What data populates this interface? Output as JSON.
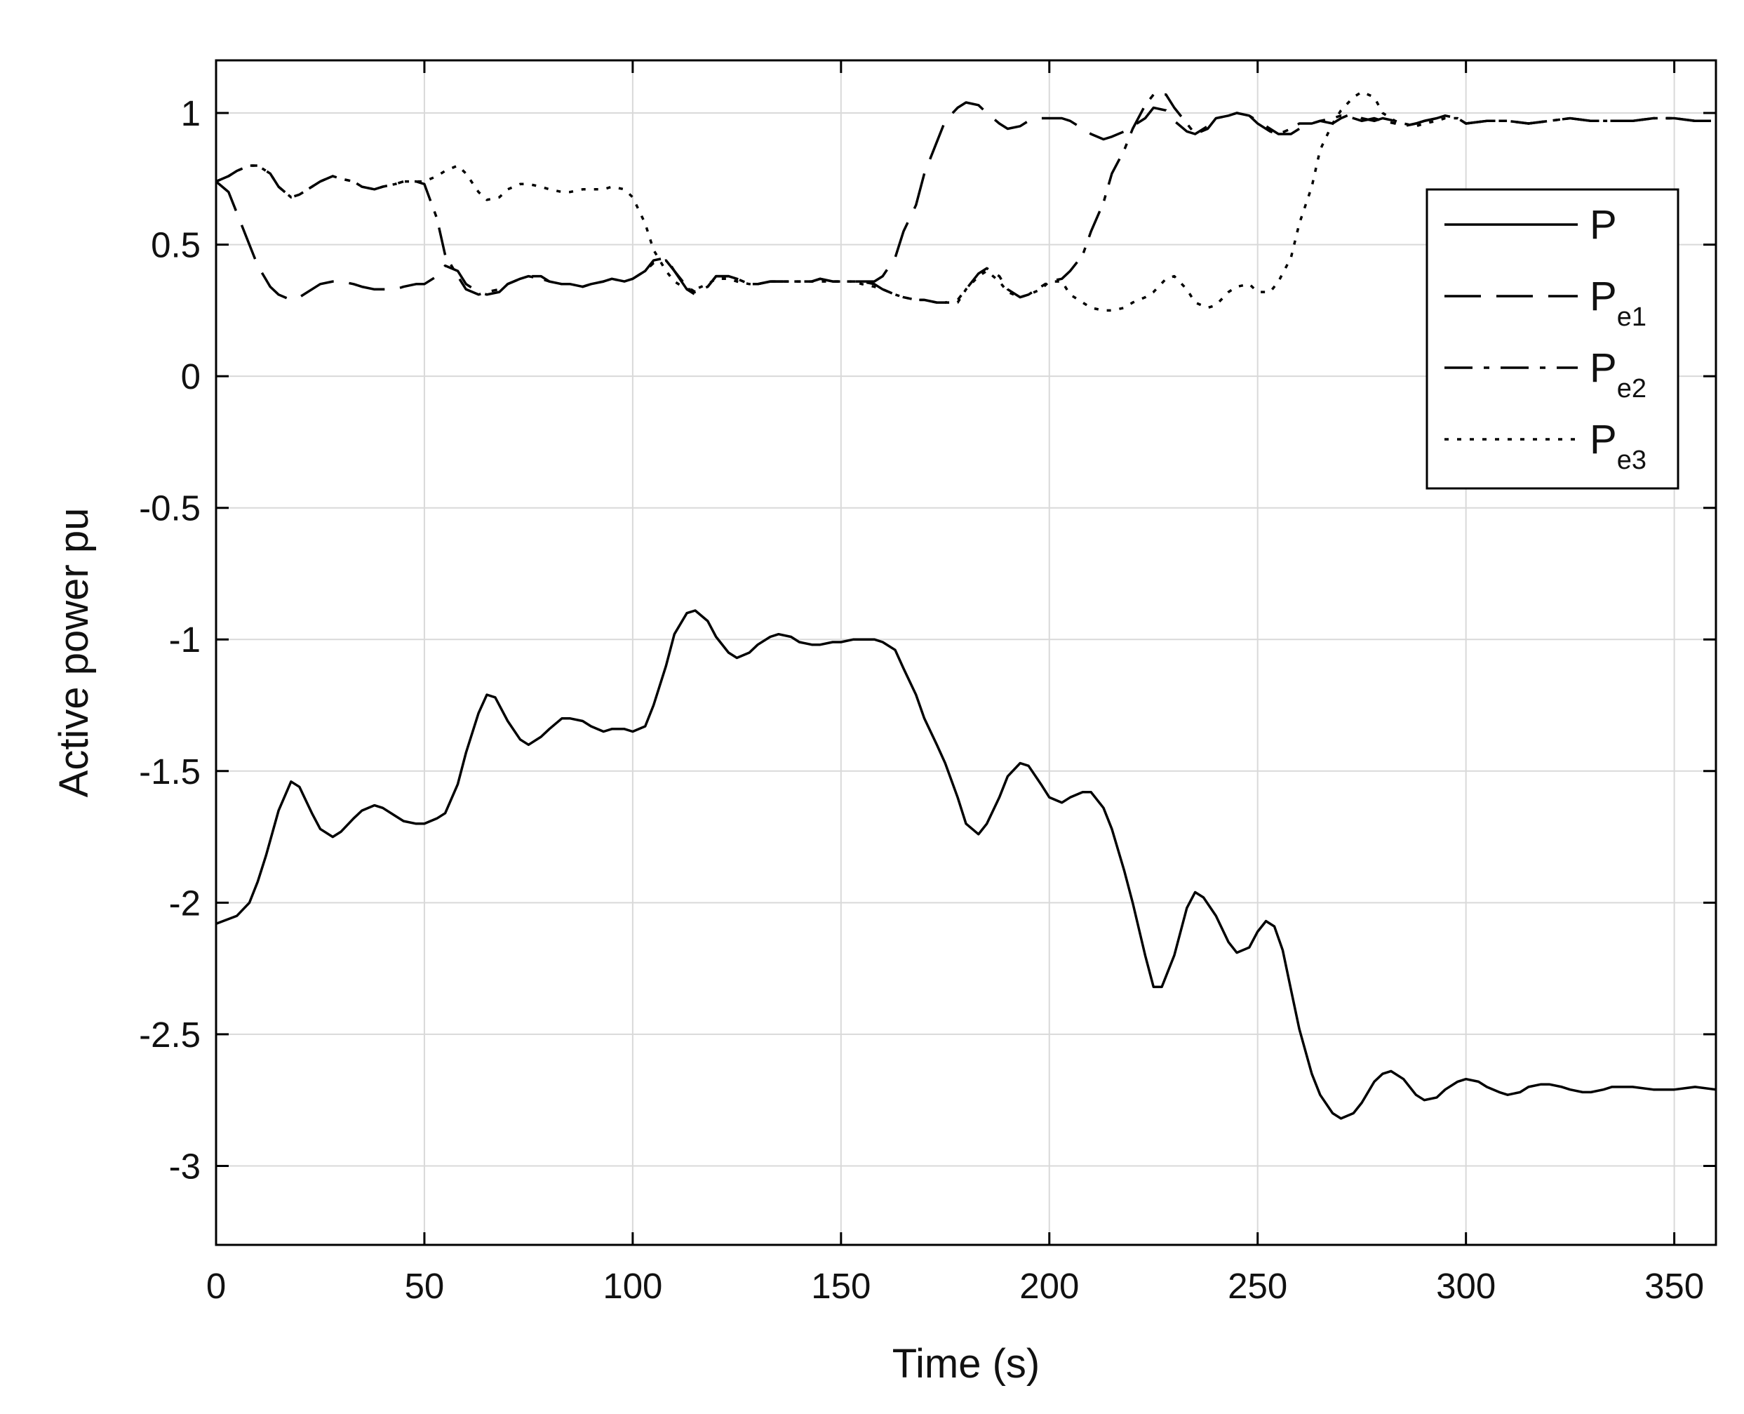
{
  "chart_data": {
    "type": "line",
    "title": "",
    "xlabel": "Time (s)",
    "ylabel": "Active power pu",
    "xlim": [
      0,
      360
    ],
    "ylim": [
      -3.3,
      1.2
    ],
    "xticks": [
      0,
      50,
      100,
      150,
      200,
      250,
      300,
      350
    ],
    "yticks": [
      1,
      0.5,
      0,
      -0.5,
      -1,
      -1.5,
      -2,
      -2.5,
      -3
    ],
    "xtick_labels": [
      "0",
      "50",
      "100",
      "150",
      "200",
      "250",
      "300",
      "350"
    ],
    "ytick_labels": [
      "1",
      "0.5",
      "0",
      "-0.5",
      "-1",
      "-1.5",
      "-2",
      "-2.5",
      "-3"
    ],
    "grid": true,
    "legend_position": "top-right",
    "colors": {
      "line": "#000000",
      "grid": "#d9d9d9",
      "axis": "#000000"
    },
    "series": [
      {
        "name": "P",
        "name_main": "P",
        "name_sub": "",
        "style": "solid",
        "x": [
          0,
          5,
          8,
          10,
          12,
          15,
          18,
          20,
          23,
          25,
          28,
          30,
          33,
          35,
          38,
          40,
          43,
          45,
          48,
          50,
          53,
          55,
          58,
          60,
          63,
          65,
          67,
          70,
          73,
          75,
          78,
          80,
          83,
          85,
          88,
          90,
          93,
          95,
          98,
          100,
          103,
          105,
          108,
          110,
          113,
          115,
          118,
          120,
          123,
          125,
          128,
          130,
          133,
          135,
          138,
          140,
          143,
          145,
          148,
          150,
          153,
          155,
          158,
          160,
          163,
          165,
          168,
          170,
          173,
          175,
          178,
          180,
          183,
          185,
          188,
          190,
          193,
          195,
          198,
          200,
          203,
          205,
          208,
          210,
          213,
          215,
          218,
          220,
          223,
          225,
          227,
          230,
          233,
          235,
          237,
          240,
          243,
          245,
          248,
          250,
          252,
          254,
          256,
          258,
          260,
          263,
          265,
          268,
          270,
          273,
          275,
          278,
          280,
          282,
          285,
          288,
          290,
          293,
          295,
          298,
          300,
          303,
          305,
          308,
          310,
          313,
          315,
          318,
          320,
          323,
          325,
          328,
          330,
          333,
          335,
          338,
          340,
          345,
          350,
          355,
          360
        ],
        "y": [
          -2.08,
          -2.05,
          -2.0,
          -1.92,
          -1.82,
          -1.65,
          -1.54,
          -1.56,
          -1.66,
          -1.72,
          -1.75,
          -1.73,
          -1.68,
          -1.65,
          -1.63,
          -1.64,
          -1.67,
          -1.69,
          -1.7,
          -1.7,
          -1.68,
          -1.66,
          -1.55,
          -1.43,
          -1.28,
          -1.21,
          -1.22,
          -1.31,
          -1.38,
          -1.4,
          -1.37,
          -1.34,
          -1.3,
          -1.3,
          -1.31,
          -1.33,
          -1.35,
          -1.34,
          -1.34,
          -1.35,
          -1.33,
          -1.25,
          -1.1,
          -0.98,
          -0.9,
          -0.89,
          -0.93,
          -0.99,
          -1.05,
          -1.07,
          -1.05,
          -1.02,
          -0.99,
          -0.98,
          -0.99,
          -1.01,
          -1.02,
          -1.02,
          -1.01,
          -1.01,
          -1.0,
          -1.0,
          -1.0,
          -1.01,
          -1.04,
          -1.11,
          -1.21,
          -1.3,
          -1.4,
          -1.47,
          -1.6,
          -1.7,
          -1.74,
          -1.7,
          -1.6,
          -1.52,
          -1.47,
          -1.48,
          -1.55,
          -1.6,
          -1.62,
          -1.6,
          -1.58,
          -1.58,
          -1.64,
          -1.72,
          -1.88,
          -2.0,
          -2.2,
          -2.32,
          -2.32,
          -2.2,
          -2.02,
          -1.96,
          -1.98,
          -2.05,
          -2.15,
          -2.19,
          -2.17,
          -2.11,
          -2.07,
          -2.09,
          -2.18,
          -2.33,
          -2.48,
          -2.65,
          -2.73,
          -2.8,
          -2.82,
          -2.8,
          -2.76,
          -2.68,
          -2.65,
          -2.64,
          -2.67,
          -2.73,
          -2.75,
          -2.74,
          -2.71,
          -2.68,
          -2.67,
          -2.68,
          -2.7,
          -2.72,
          -2.73,
          -2.72,
          -2.7,
          -2.69,
          -2.69,
          -2.7,
          -2.71,
          -2.72,
          -2.72,
          -2.71,
          -2.7,
          -2.7,
          -2.7,
          -2.71,
          -2.71,
          -2.7,
          -2.71
        ]
      },
      {
        "name": "Pe1",
        "name_main": "P",
        "name_sub": "e1",
        "style": "dashed",
        "x": [
          0,
          3,
          5,
          8,
          10,
          13,
          15,
          18,
          20,
          23,
          25,
          28,
          30,
          33,
          35,
          38,
          40,
          43,
          45,
          48,
          50,
          53,
          55,
          58,
          60,
          63,
          65,
          68,
          70,
          73,
          75,
          78,
          80,
          83,
          85,
          88,
          90,
          93,
          95,
          98,
          100,
          103,
          105,
          108,
          110,
          113,
          115,
          118,
          120,
          123,
          125,
          128,
          130,
          133,
          135,
          138,
          140,
          143,
          145,
          148,
          150,
          153,
          155,
          158,
          160,
          163,
          165,
          168,
          170,
          173,
          175,
          178,
          180,
          183,
          185,
          188,
          190,
          193,
          195,
          198,
          200,
          203,
          205,
          208,
          210,
          213,
          215,
          218,
          220,
          223,
          225,
          228,
          230,
          233,
          235,
          238,
          240,
          243,
          245,
          248,
          250,
          253,
          255,
          258,
          260,
          263,
          265,
          268,
          270,
          273,
          275,
          278,
          280,
          283,
          285,
          288,
          290,
          293,
          295,
          298,
          300,
          305,
          310,
          315,
          320,
          325,
          330,
          335,
          340,
          345,
          350,
          355,
          360
        ],
        "y": [
          0.74,
          0.7,
          0.62,
          0.5,
          0.42,
          0.34,
          0.31,
          0.29,
          0.3,
          0.33,
          0.35,
          0.36,
          0.36,
          0.35,
          0.34,
          0.33,
          0.33,
          0.33,
          0.34,
          0.35,
          0.35,
          0.38,
          0.42,
          0.4,
          0.35,
          0.32,
          0.31,
          0.32,
          0.35,
          0.37,
          0.38,
          0.38,
          0.36,
          0.35,
          0.35,
          0.34,
          0.35,
          0.36,
          0.37,
          0.36,
          0.37,
          0.4,
          0.44,
          0.45,
          0.4,
          0.33,
          0.31,
          0.34,
          0.38,
          0.38,
          0.37,
          0.35,
          0.35,
          0.36,
          0.36,
          0.36,
          0.36,
          0.36,
          0.37,
          0.36,
          0.36,
          0.36,
          0.36,
          0.36,
          0.38,
          0.45,
          0.55,
          0.65,
          0.77,
          0.89,
          0.97,
          1.02,
          1.04,
          1.03,
          1.0,
          0.96,
          0.94,
          0.95,
          0.97,
          0.98,
          0.98,
          0.98,
          0.97,
          0.94,
          0.92,
          0.9,
          0.91,
          0.93,
          0.95,
          0.98,
          1.02,
          1.01,
          0.97,
          0.93,
          0.92,
          0.95,
          0.98,
          0.99,
          1.0,
          0.99,
          0.97,
          0.94,
          0.92,
          0.92,
          0.94,
          0.96,
          0.97,
          0.96,
          0.98,
          1.0,
          0.98,
          0.97,
          0.98,
          0.97,
          0.95,
          0.96,
          0.97,
          0.98,
          0.99,
          0.98,
          0.96,
          0.97,
          0.97,
          0.96,
          0.97,
          0.98,
          0.97,
          0.97,
          0.97,
          0.98,
          0.98,
          0.97,
          0.97
        ]
      },
      {
        "name": "Pe2",
        "name_main": "P",
        "name_sub": "e2",
        "style": "dashdot",
        "x": [
          0,
          3,
          5,
          8,
          10,
          13,
          15,
          18,
          20,
          23,
          25,
          28,
          30,
          33,
          35,
          38,
          40,
          43,
          45,
          48,
          50,
          53,
          55,
          58,
          60,
          63,
          65,
          68,
          70,
          73,
          75,
          78,
          80,
          83,
          85,
          88,
          90,
          93,
          95,
          98,
          100,
          103,
          105,
          108,
          110,
          113,
          115,
          118,
          120,
          123,
          125,
          128,
          130,
          133,
          135,
          138,
          140,
          143,
          145,
          148,
          150,
          153,
          155,
          158,
          160,
          163,
          165,
          168,
          170,
          173,
          175,
          178,
          180,
          183,
          185,
          188,
          190,
          193,
          195,
          198,
          200,
          203,
          205,
          208,
          210,
          213,
          215,
          218,
          220,
          223,
          225,
          228,
          230,
          233,
          235,
          238,
          240,
          243,
          245,
          248,
          250,
          253,
          255,
          258,
          260,
          263,
          265,
          268,
          270,
          273,
          275,
          278,
          280,
          283,
          285,
          288,
          290,
          293,
          295,
          298,
          300,
          305,
          310,
          315,
          320,
          325,
          330,
          335,
          340,
          345,
          350,
          355,
          360
        ],
        "y": [
          0.74,
          0.76,
          0.78,
          0.8,
          0.8,
          0.77,
          0.72,
          0.68,
          0.69,
          0.72,
          0.74,
          0.76,
          0.75,
          0.74,
          0.72,
          0.71,
          0.72,
          0.73,
          0.74,
          0.74,
          0.73,
          0.6,
          0.46,
          0.38,
          0.33,
          0.31,
          0.32,
          0.33,
          0.35,
          0.37,
          0.38,
          0.37,
          0.36,
          0.35,
          0.35,
          0.34,
          0.35,
          0.36,
          0.37,
          0.36,
          0.37,
          0.4,
          0.43,
          0.44,
          0.4,
          0.34,
          0.32,
          0.34,
          0.38,
          0.38,
          0.37,
          0.35,
          0.35,
          0.36,
          0.36,
          0.36,
          0.36,
          0.36,
          0.37,
          0.36,
          0.36,
          0.36,
          0.36,
          0.35,
          0.33,
          0.31,
          0.3,
          0.29,
          0.29,
          0.28,
          0.28,
          0.29,
          0.33,
          0.39,
          0.41,
          0.38,
          0.33,
          0.3,
          0.31,
          0.34,
          0.36,
          0.37,
          0.4,
          0.46,
          0.55,
          0.66,
          0.77,
          0.86,
          0.94,
          1.03,
          1.07,
          1.07,
          1.02,
          0.96,
          0.92,
          0.94,
          0.98,
          0.99,
          1.0,
          0.99,
          0.96,
          0.93,
          0.92,
          0.94,
          0.96,
          0.96,
          0.97,
          0.98,
          0.99,
          0.98,
          0.97,
          0.98,
          0.97,
          0.96,
          0.95,
          0.96,
          0.97,
          0.98,
          0.99,
          0.98,
          0.96,
          0.97,
          0.97,
          0.96,
          0.97,
          0.98,
          0.97,
          0.97,
          0.97,
          0.98,
          0.98,
          0.97,
          0.97
        ]
      },
      {
        "name": "Pe3",
        "name_main": "P",
        "name_sub": "e3",
        "style": "dotted",
        "x": [
          0,
          3,
          5,
          8,
          10,
          13,
          15,
          18,
          20,
          23,
          25,
          28,
          30,
          33,
          35,
          38,
          40,
          43,
          45,
          48,
          50,
          53,
          55,
          58,
          60,
          63,
          65,
          68,
          70,
          73,
          75,
          78,
          80,
          83,
          85,
          88,
          90,
          93,
          95,
          98,
          100,
          103,
          105,
          108,
          110,
          113,
          115,
          118,
          120,
          123,
          125,
          128,
          130,
          133,
          135,
          138,
          140,
          143,
          145,
          148,
          150,
          153,
          155,
          158,
          160,
          163,
          165,
          168,
          170,
          173,
          175,
          178,
          180,
          183,
          185,
          188,
          190,
          193,
          195,
          198,
          200,
          203,
          205,
          208,
          210,
          213,
          215,
          218,
          220,
          223,
          225,
          228,
          230,
          233,
          235,
          238,
          240,
          243,
          245,
          248,
          250,
          253,
          255,
          258,
          260,
          263,
          265,
          268,
          270,
          273,
          275,
          278,
          280,
          283,
          285,
          288,
          290,
          293,
          295,
          298,
          300,
          305,
          310,
          315,
          320,
          325,
          330,
          335,
          340,
          345,
          350,
          355,
          360
        ],
        "y": [
          0.74,
          0.76,
          0.78,
          0.8,
          0.8,
          0.77,
          0.72,
          0.68,
          0.69,
          0.72,
          0.74,
          0.76,
          0.75,
          0.74,
          0.72,
          0.71,
          0.72,
          0.73,
          0.74,
          0.74,
          0.74,
          0.76,
          0.78,
          0.8,
          0.77,
          0.7,
          0.67,
          0.68,
          0.71,
          0.73,
          0.73,
          0.72,
          0.71,
          0.7,
          0.7,
          0.71,
          0.71,
          0.71,
          0.72,
          0.71,
          0.68,
          0.58,
          0.48,
          0.4,
          0.36,
          0.33,
          0.33,
          0.35,
          0.37,
          0.37,
          0.36,
          0.35,
          0.35,
          0.36,
          0.36,
          0.36,
          0.36,
          0.36,
          0.36,
          0.36,
          0.36,
          0.36,
          0.35,
          0.34,
          0.33,
          0.31,
          0.3,
          0.29,
          0.29,
          0.28,
          0.28,
          0.28,
          0.33,
          0.38,
          0.4,
          0.36,
          0.32,
          0.3,
          0.31,
          0.33,
          0.36,
          0.36,
          0.31,
          0.28,
          0.26,
          0.25,
          0.25,
          0.26,
          0.28,
          0.3,
          0.32,
          0.37,
          0.38,
          0.33,
          0.28,
          0.26,
          0.27,
          0.32,
          0.34,
          0.35,
          0.32,
          0.32,
          0.36,
          0.45,
          0.58,
          0.72,
          0.86,
          0.96,
          1.01,
          1.06,
          1.08,
          1.06,
          1.0,
          0.97,
          0.96,
          0.95,
          0.96,
          0.97,
          0.98,
          0.98,
          0.96,
          0.97,
          0.97,
          0.96,
          0.97,
          0.98,
          0.97,
          0.97,
          0.97,
          0.98,
          0.98,
          0.97,
          0.97
        ]
      }
    ]
  }
}
